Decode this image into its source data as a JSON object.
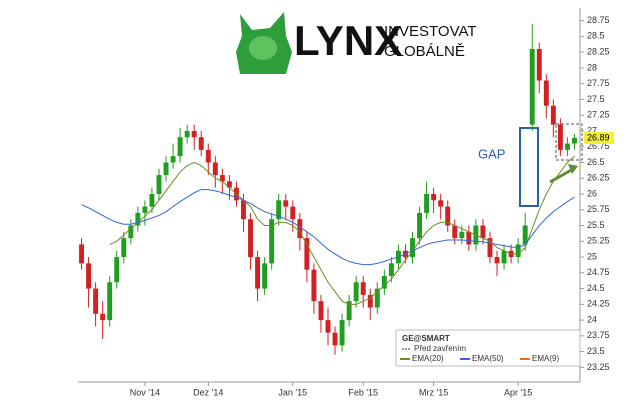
{
  "logo": {
    "brand": "LYNX",
    "line1": "INVESTOVAT",
    "line2": "GLOBÁLNĚ"
  },
  "annotation": "GAP",
  "panel": {
    "title": "GE@SMART",
    "note": "Před zavřením"
  },
  "chart_data": {
    "type": "candlestick",
    "categories": [
      null,
      null,
      null,
      null,
      null,
      null,
      null,
      null,
      null,
      "Nov '14",
      null,
      null,
      null,
      null,
      null,
      null,
      null,
      null,
      "Dez '14",
      null,
      null,
      null,
      null,
      null,
      null,
      null,
      null,
      null,
      null,
      null,
      "Jan '15",
      null,
      null,
      null,
      null,
      null,
      null,
      null,
      null,
      null,
      "Feb '15",
      null,
      null,
      null,
      null,
      null,
      null,
      null,
      null,
      null,
      "Mrz '15",
      null,
      null,
      null,
      null,
      null,
      null,
      null,
      null,
      null,
      null,
      null,
      "Apr '15",
      null,
      null,
      null,
      null,
      null,
      null,
      null,
      null
    ],
    "open": [
      25.2,
      24.9,
      24.5,
      24.1,
      24.0,
      24.6,
      25.0,
      25.3,
      25.5,
      25.7,
      25.8,
      26.0,
      26.3,
      26.5,
      26.6,
      26.9,
      27.0,
      26.9,
      26.7,
      26.5,
      26.3,
      26.2,
      26.1,
      25.9,
      25.6,
      25.0,
      24.5,
      24.9,
      25.6,
      25.9,
      25.8,
      25.6,
      25.3,
      24.8,
      24.3,
      24.0,
      23.8,
      23.6,
      24.0,
      24.3,
      24.6,
      24.4,
      24.2,
      24.5,
      24.7,
      24.9,
      25.1,
      25.0,
      25.3,
      25.7,
      26.0,
      25.9,
      25.8,
      25.5,
      25.3,
      25.4,
      25.2,
      25.5,
      25.3,
      25.0,
      24.9,
      25.1,
      25.0,
      25.2,
      27.1,
      28.3,
      27.8,
      27.4,
      27.1,
      26.7,
      26.8
    ],
    "high": [
      25.3,
      25.0,
      24.6,
      24.3,
      24.7,
      25.1,
      25.4,
      25.6,
      25.8,
      25.9,
      26.1,
      26.4,
      26.6,
      26.8,
      27.05,
      27.1,
      27.1,
      27.0,
      26.8,
      26.6,
      26.4,
      26.3,
      26.2,
      26.0,
      25.7,
      25.1,
      25.0,
      25.7,
      26.0,
      26.0,
      25.9,
      25.7,
      25.4,
      24.9,
      24.4,
      24.2,
      23.9,
      24.1,
      24.4,
      24.7,
      24.7,
      24.5,
      24.6,
      24.8,
      25.0,
      25.2,
      25.2,
      25.4,
      25.8,
      26.2,
      26.1,
      26.0,
      25.9,
      25.6,
      25.5,
      25.5,
      25.6,
      25.6,
      25.4,
      25.1,
      25.2,
      25.2,
      25.3,
      25.7,
      28.7,
      28.4,
      27.9,
      27.5,
      27.2,
      26.9,
      26.95
    ],
    "low": [
      24.8,
      24.2,
      23.9,
      23.7,
      23.9,
      24.5,
      24.9,
      25.2,
      25.4,
      25.5,
      25.7,
      25.9,
      26.2,
      26.4,
      26.5,
      26.8,
      26.7,
      26.6,
      26.3,
      26.1,
      26.0,
      25.9,
      25.8,
      25.4,
      24.8,
      24.3,
      24.4,
      24.8,
      25.5,
      25.6,
      25.4,
      25.1,
      24.6,
      24.1,
      23.8,
      23.6,
      23.45,
      23.5,
      23.9,
      24.2,
      24.2,
      24.0,
      24.1,
      24.4,
      24.6,
      24.8,
      24.9,
      24.9,
      25.2,
      25.6,
      25.7,
      25.6,
      25.4,
      25.2,
      25.2,
      25.1,
      25.1,
      25.2,
      24.9,
      24.7,
      24.8,
      24.9,
      24.9,
      25.1,
      27.0,
      27.6,
      27.2,
      26.9,
      26.6,
      26.6,
      26.7
    ],
    "close": [
      24.9,
      24.5,
      24.1,
      24.0,
      24.6,
      25.0,
      25.3,
      25.5,
      25.7,
      25.8,
      26.0,
      26.3,
      26.5,
      26.6,
      26.9,
      27.0,
      26.9,
      26.7,
      26.5,
      26.3,
      26.2,
      26.1,
      25.9,
      25.6,
      25.0,
      24.5,
      24.9,
      25.6,
      25.9,
      25.8,
      25.6,
      25.3,
      24.8,
      24.3,
      24.0,
      23.8,
      23.6,
      24.0,
      24.3,
      24.6,
      24.4,
      24.2,
      24.5,
      24.7,
      24.9,
      25.1,
      25.0,
      25.3,
      25.7,
      26.0,
      25.9,
      25.8,
      25.5,
      25.3,
      25.4,
      25.2,
      25.5,
      25.3,
      25.0,
      24.9,
      25.1,
      25.0,
      25.2,
      25.5,
      28.3,
      27.8,
      27.4,
      27.1,
      26.7,
      26.8,
      26.89
    ],
    "up_color": "#1f9e1f",
    "down_color": "#d42020",
    "series": [
      {
        "name": "EMA(20)",
        "color": "#6b8e23",
        "values": [
          null,
          null,
          null,
          null,
          25.2,
          25.25,
          25.35,
          25.45,
          25.55,
          25.65,
          25.75,
          25.9,
          26.05,
          26.2,
          26.35,
          26.45,
          26.5,
          26.45,
          26.35,
          26.25,
          26.2,
          26.1,
          26.0,
          25.9,
          25.8,
          25.6,
          25.5,
          25.5,
          25.55,
          25.55,
          25.5,
          25.4,
          25.2,
          25.0,
          24.8,
          24.6,
          24.45,
          24.3,
          24.25,
          24.25,
          24.3,
          24.35,
          24.45,
          24.55,
          24.65,
          24.8,
          24.95,
          25.1,
          25.25,
          25.4,
          25.5,
          25.55,
          25.55,
          25.5,
          25.45,
          25.4,
          25.35,
          25.3,
          25.25,
          25.15,
          25.1,
          25.05,
          25.05,
          25.15,
          25.45,
          25.75,
          26.0,
          26.2,
          26.35,
          26.5,
          26.6
        ]
      },
      {
        "name": "EMA(50)",
        "color": "#3366dd",
        "values": [
          25.83,
          25.78,
          25.72,
          25.66,
          25.6,
          25.55,
          25.52,
          25.52,
          25.55,
          25.58,
          25.62,
          25.66,
          25.72,
          25.8,
          25.88,
          25.95,
          26.02,
          26.07,
          26.07,
          26.05,
          26.02,
          25.98,
          25.95,
          25.9,
          25.85,
          25.78,
          25.72,
          25.68,
          25.65,
          25.6,
          25.55,
          25.48,
          25.4,
          25.32,
          25.22,
          25.12,
          25.05,
          24.98,
          24.93,
          24.9,
          24.88,
          24.88,
          24.9,
          24.93,
          24.97,
          25.0,
          25.05,
          25.1,
          25.15,
          25.2,
          25.23,
          25.25,
          25.27,
          25.27,
          25.27,
          25.26,
          25.25,
          25.24,
          25.22,
          25.2,
          25.18,
          25.16,
          25.15,
          25.2,
          25.35,
          25.5,
          25.62,
          25.72,
          25.8,
          25.88,
          25.95
        ]
      }
    ],
    "legend_extra": {
      "name": "EMA(9)",
      "color": "#e87020"
    },
    "ylim": [
      23.05,
      28.95
    ],
    "yticks": [
      23.25,
      23.5,
      23.75,
      24,
      24.25,
      24.5,
      24.75,
      25,
      25.25,
      25.5,
      25.75,
      26,
      26.25,
      26.5,
      26.75,
      27,
      27.25,
      27.5,
      27.75,
      28,
      28.25,
      28.5,
      28.75
    ],
    "grid": false
  }
}
